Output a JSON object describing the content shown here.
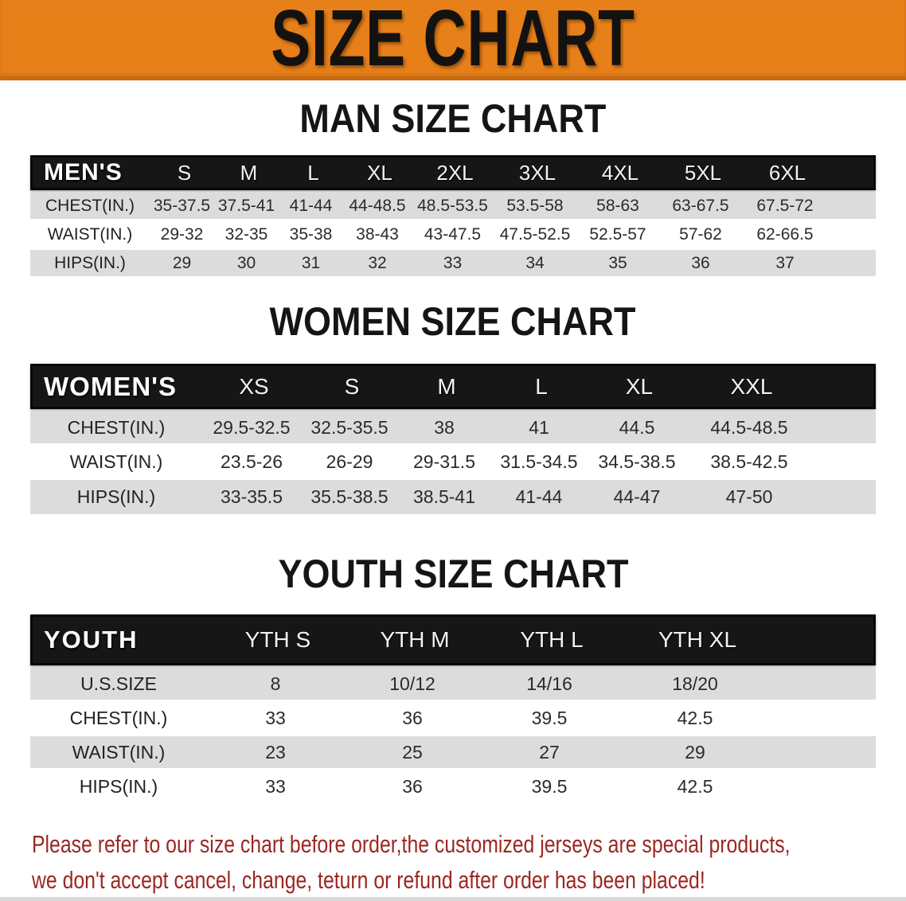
{
  "banner": {
    "title": "SIZE CHART"
  },
  "colors": {
    "banner_orange": "#e8801a",
    "banner_border": "#c96b10",
    "table_header_black": "#161616",
    "row_gray": "#dcdcdc",
    "note_red": "#9b2722"
  },
  "sections": {
    "men": {
      "heading": "MAN SIZE CHART",
      "table": {
        "group_label": "MEN'S",
        "columns": [
          "S",
          "M",
          "L",
          "XL",
          "2XL",
          "3XL",
          "4XL",
          "5XL",
          "6XL"
        ],
        "rows": [
          {
            "label": "CHEST(IN.)",
            "values": [
              "35-37.5",
              "37.5-41",
              "41-44",
              "44-48.5",
              "48.5-53.5",
              "53.5-58",
              "58-63",
              "63-67.5",
              "67.5-72"
            ]
          },
          {
            "label": "WAIST(IN.)",
            "values": [
              "29-32",
              "32-35",
              "35-38",
              "38-43",
              "43-47.5",
              "47.5-52.5",
              "52.5-57",
              "57-62",
              "62-66.5"
            ]
          },
          {
            "label": "HIPS(IN.)",
            "values": [
              "29",
              "30",
              "31",
              "32",
              "33",
              "34",
              "35",
              "36",
              "37"
            ]
          }
        ]
      }
    },
    "women": {
      "heading": "WOMEN SIZE CHART",
      "table": {
        "group_label": "WOMEN'S",
        "columns": [
          "XS",
          "S",
          "M",
          "L",
          "XL",
          "XXL"
        ],
        "rows": [
          {
            "label": "CHEST(IN.)",
            "values": [
              "29.5-32.5",
              "32.5-35.5",
              "38",
              "41",
              "44.5",
              "44.5-48.5"
            ]
          },
          {
            "label": "WAIST(IN.)",
            "values": [
              "23.5-26",
              "26-29",
              "29-31.5",
              "31.5-34.5",
              "34.5-38.5",
              "38.5-42.5"
            ]
          },
          {
            "label": "HIPS(IN.)",
            "values": [
              "33-35.5",
              "35.5-38.5",
              "38.5-41",
              "41-44",
              "44-47",
              "47-50"
            ]
          }
        ]
      }
    },
    "youth": {
      "heading": "YOUTH SIZE CHART",
      "table": {
        "group_label": "YOUTH",
        "columns": [
          "YTH S",
          "YTH M",
          "YTH L",
          "YTH XL"
        ],
        "rows": [
          {
            "label": "U.S.SIZE",
            "values": [
              "8",
              "10/12",
              "14/16",
              "18/20"
            ]
          },
          {
            "label": "CHEST(IN.)",
            "values": [
              "33",
              "36",
              "39.5",
              "42.5"
            ]
          },
          {
            "label": "WAIST(IN.)",
            "values": [
              "23",
              "25",
              "27",
              "29"
            ]
          },
          {
            "label": "HIPS(IN.)",
            "values": [
              "33",
              "36",
              "39.5",
              "42.5"
            ]
          }
        ]
      }
    }
  },
  "footer": {
    "line1": "Please refer to our size chart before order,the customized jerseys are special products,",
    "line2": "we don't accept cancel, change, teturn or refund after order has been placed!"
  }
}
